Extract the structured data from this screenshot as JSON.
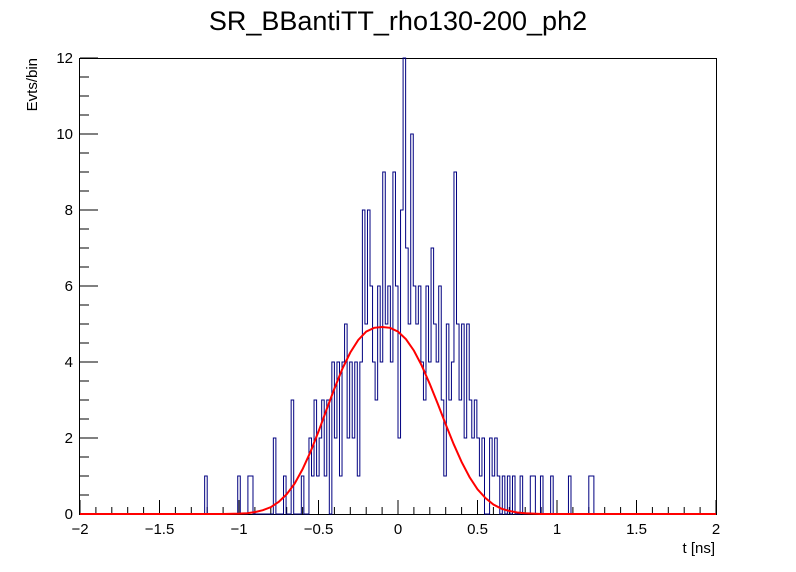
{
  "chart_data": {
    "type": "histogram",
    "title": "SR_BBantiTT_rho130-200_ph2",
    "xlabel": "t [ns]",
    "ylabel": "Evts/bin",
    "xlim": [
      -2,
      2
    ],
    "ylim": [
      0,
      12
    ],
    "grid": false,
    "x_ticks": [
      -2,
      -1.5,
      -1,
      -0.5,
      0,
      0.5,
      1,
      1.5,
      2
    ],
    "x_tick_labels": [
      "−2",
      "−1.5",
      "−1",
      "−0.5",
      "0",
      "0.5",
      "1",
      "1.5",
      "2"
    ],
    "y_ticks": [
      0,
      2,
      4,
      6,
      8,
      10,
      12
    ],
    "y_tick_labels": [
      "0",
      "2",
      "4",
      "6",
      "8",
      "10",
      "12"
    ],
    "histogram": {
      "color": "#000080",
      "bin_width": 0.016,
      "bins": [
        {
          "x": -1.216,
          "y": 1
        },
        {
          "x": -1.2,
          "y": 0
        },
        {
          "x": -1.008,
          "y": 1
        },
        {
          "x": -0.992,
          "y": 0
        },
        {
          "x": -0.944,
          "y": 1
        },
        {
          "x": -0.928,
          "y": 1
        },
        {
          "x": -0.912,
          "y": 0
        },
        {
          "x": -0.784,
          "y": 2
        },
        {
          "x": -0.768,
          "y": 0
        },
        {
          "x": -0.72,
          "y": 1
        },
        {
          "x": -0.704,
          "y": 0
        },
        {
          "x": -0.672,
          "y": 3
        },
        {
          "x": -0.656,
          "y": 0
        },
        {
          "x": -0.608,
          "y": 1
        },
        {
          "x": -0.592,
          "y": 0
        },
        {
          "x": -0.56,
          "y": 2
        },
        {
          "x": -0.544,
          "y": 1
        },
        {
          "x": -0.528,
          "y": 3
        },
        {
          "x": -0.512,
          "y": 1
        },
        {
          "x": -0.496,
          "y": 2
        },
        {
          "x": -0.48,
          "y": 3
        },
        {
          "x": -0.464,
          "y": 1
        },
        {
          "x": -0.448,
          "y": 3
        },
        {
          "x": -0.432,
          "y": 0
        },
        {
          "x": -0.416,
          "y": 4
        },
        {
          "x": -0.4,
          "y": 2
        },
        {
          "x": -0.384,
          "y": 4
        },
        {
          "x": -0.368,
          "y": 1
        },
        {
          "x": -0.352,
          "y": 4
        },
        {
          "x": -0.336,
          "y": 5
        },
        {
          "x": -0.32,
          "y": 2
        },
        {
          "x": -0.304,
          "y": 4
        },
        {
          "x": -0.288,
          "y": 2
        },
        {
          "x": -0.272,
          "y": 4
        },
        {
          "x": -0.256,
          "y": 1
        },
        {
          "x": -0.24,
          "y": 4
        },
        {
          "x": -0.224,
          "y": 8
        },
        {
          "x": -0.208,
          "y": 5
        },
        {
          "x": -0.192,
          "y": 8
        },
        {
          "x": -0.176,
          "y": 6
        },
        {
          "x": -0.16,
          "y": 4
        },
        {
          "x": -0.144,
          "y": 3
        },
        {
          "x": -0.128,
          "y": 6
        },
        {
          "x": -0.112,
          "y": 4
        },
        {
          "x": -0.096,
          "y": 9
        },
        {
          "x": -0.08,
          "y": 5
        },
        {
          "x": -0.064,
          "y": 6
        },
        {
          "x": -0.048,
          "y": 4
        },
        {
          "x": -0.032,
          "y": 9
        },
        {
          "x": -0.016,
          "y": 6
        },
        {
          "x": 0.0,
          "y": 2
        },
        {
          "x": 0.016,
          "y": 8
        },
        {
          "x": 0.032,
          "y": 12
        },
        {
          "x": 0.048,
          "y": 7
        },
        {
          "x": 0.064,
          "y": 5
        },
        {
          "x": 0.08,
          "y": 10
        },
        {
          "x": 0.096,
          "y": 6
        },
        {
          "x": 0.112,
          "y": 5
        },
        {
          "x": 0.128,
          "y": 6
        },
        {
          "x": 0.144,
          "y": 4
        },
        {
          "x": 0.16,
          "y": 3
        },
        {
          "x": 0.176,
          "y": 6
        },
        {
          "x": 0.192,
          "y": 4
        },
        {
          "x": 0.208,
          "y": 7
        },
        {
          "x": 0.224,
          "y": 5
        },
        {
          "x": 0.24,
          "y": 4
        },
        {
          "x": 0.256,
          "y": 6
        },
        {
          "x": 0.272,
          "y": 3
        },
        {
          "x": 0.288,
          "y": 1
        },
        {
          "x": 0.304,
          "y": 5
        },
        {
          "x": 0.32,
          "y": 3
        },
        {
          "x": 0.336,
          "y": 4
        },
        {
          "x": 0.352,
          "y": 9
        },
        {
          "x": 0.368,
          "y": 5
        },
        {
          "x": 0.384,
          "y": 3
        },
        {
          "x": 0.4,
          "y": 5
        },
        {
          "x": 0.416,
          "y": 2
        },
        {
          "x": 0.432,
          "y": 5
        },
        {
          "x": 0.448,
          "y": 3
        },
        {
          "x": 0.464,
          "y": 2
        },
        {
          "x": 0.48,
          "y": 3
        },
        {
          "x": 0.496,
          "y": 2
        },
        {
          "x": 0.512,
          "y": 1
        },
        {
          "x": 0.528,
          "y": 2
        },
        {
          "x": 0.544,
          "y": 0
        },
        {
          "x": 0.576,
          "y": 2
        },
        {
          "x": 0.592,
          "y": 1
        },
        {
          "x": 0.608,
          "y": 2
        },
        {
          "x": 0.624,
          "y": 1
        },
        {
          "x": 0.64,
          "y": 0
        },
        {
          "x": 0.656,
          "y": 1
        },
        {
          "x": 0.672,
          "y": 0
        },
        {
          "x": 0.688,
          "y": 1
        },
        {
          "x": 0.704,
          "y": 0
        },
        {
          "x": 0.72,
          "y": 1
        },
        {
          "x": 0.736,
          "y": 0
        },
        {
          "x": 0.768,
          "y": 1
        },
        {
          "x": 0.784,
          "y": 0
        },
        {
          "x": 0.832,
          "y": 1
        },
        {
          "x": 0.848,
          "y": 1
        },
        {
          "x": 0.864,
          "y": 0
        },
        {
          "x": 0.896,
          "y": 1
        },
        {
          "x": 0.912,
          "y": 0
        },
        {
          "x": 0.96,
          "y": 1
        },
        {
          "x": 0.976,
          "y": 0
        },
        {
          "x": 1.072,
          "y": 1
        },
        {
          "x": 1.088,
          "y": 0
        },
        {
          "x": 1.2,
          "y": 1
        },
        {
          "x": 1.216,
          "y": 1
        },
        {
          "x": 1.232,
          "y": 0
        }
      ]
    },
    "fit": {
      "color": "#ff0000",
      "function": "gaussian",
      "points": [
        {
          "x": -2.0,
          "y": 0
        },
        {
          "x": -1.1,
          "y": 0
        },
        {
          "x": -1.0,
          "y": 0.01
        },
        {
          "x": -0.95,
          "y": 0.02
        },
        {
          "x": -0.9,
          "y": 0.05
        },
        {
          "x": -0.85,
          "y": 0.1
        },
        {
          "x": -0.8,
          "y": 0.18
        },
        {
          "x": -0.75,
          "y": 0.32
        },
        {
          "x": -0.7,
          "y": 0.52
        },
        {
          "x": -0.65,
          "y": 0.8
        },
        {
          "x": -0.6,
          "y": 1.18
        },
        {
          "x": -0.55,
          "y": 1.64
        },
        {
          "x": -0.5,
          "y": 2.17
        },
        {
          "x": -0.45,
          "y": 2.74
        },
        {
          "x": -0.4,
          "y": 3.3
        },
        {
          "x": -0.35,
          "y": 3.82
        },
        {
          "x": -0.3,
          "y": 4.25
        },
        {
          "x": -0.25,
          "y": 4.58
        },
        {
          "x": -0.2,
          "y": 4.8
        },
        {
          "x": -0.15,
          "y": 4.9
        },
        {
          "x": -0.1,
          "y": 4.92
        },
        {
          "x": -0.05,
          "y": 4.9
        },
        {
          "x": 0.0,
          "y": 4.8
        },
        {
          "x": 0.05,
          "y": 4.6
        },
        {
          "x": 0.1,
          "y": 4.3
        },
        {
          "x": 0.15,
          "y": 3.9
        },
        {
          "x": 0.2,
          "y": 3.42
        },
        {
          "x": 0.25,
          "y": 2.9
        },
        {
          "x": 0.3,
          "y": 2.36
        },
        {
          "x": 0.35,
          "y": 1.84
        },
        {
          "x": 0.4,
          "y": 1.37
        },
        {
          "x": 0.45,
          "y": 0.97
        },
        {
          "x": 0.5,
          "y": 0.65
        },
        {
          "x": 0.55,
          "y": 0.42
        },
        {
          "x": 0.6,
          "y": 0.25
        },
        {
          "x": 0.65,
          "y": 0.14
        },
        {
          "x": 0.7,
          "y": 0.08
        },
        {
          "x": 0.75,
          "y": 0.04
        },
        {
          "x": 0.8,
          "y": 0.02
        },
        {
          "x": 0.9,
          "y": 0
        },
        {
          "x": 2.0,
          "y": 0
        }
      ]
    }
  }
}
